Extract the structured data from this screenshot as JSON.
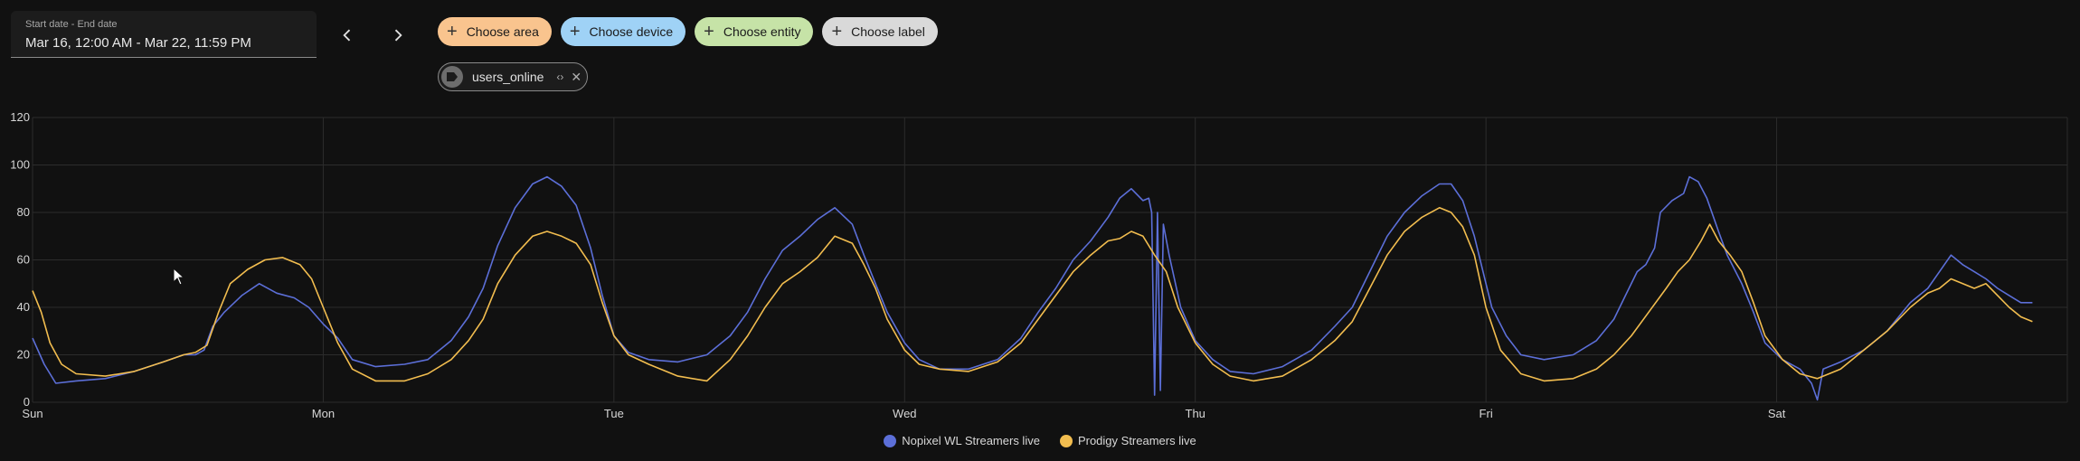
{
  "date_range": {
    "label": "Start date - End date",
    "value": "Mar 16, 12:00 AM - Mar 22, 11:59 PM"
  },
  "nav": {
    "prev_icon": "chevron-left-icon",
    "next_icon": "chevron-right-icon"
  },
  "target_picker": {
    "chips": [
      {
        "label": "Choose area",
        "color": "#f9c48e"
      },
      {
        "label": "Choose device",
        "color": "#9fd2f6"
      },
      {
        "label": "Choose entity",
        "color": "#c6e3a7"
      },
      {
        "label": "Choose label",
        "color": "#d9d9d9"
      }
    ],
    "selected": {
      "label": "users_online",
      "icon": "label-icon"
    }
  },
  "chart_data": {
    "type": "line",
    "title": "",
    "xlabel": "",
    "ylabel": "",
    "x_ticks": [
      "Sun",
      "Mon",
      "Tue",
      "Wed",
      "Thu",
      "Fri",
      "Sat"
    ],
    "x_unit": "day index from Sun 00:00",
    "xlim": [
      0,
      7
    ],
    "ylim": [
      0,
      120
    ],
    "y_ticks": [
      0,
      20,
      40,
      60,
      80,
      100,
      120
    ],
    "grid": true,
    "legend_position": "bottom-center",
    "series": [
      {
        "name": "Nopixel WL Streamers live",
        "color": "#5c6fd8",
        "points": [
          [
            0.0,
            27
          ],
          [
            0.04,
            16
          ],
          [
            0.08,
            8
          ],
          [
            0.15,
            9
          ],
          [
            0.25,
            10
          ],
          [
            0.35,
            13
          ],
          [
            0.45,
            17
          ],
          [
            0.52,
            20
          ],
          [
            0.56,
            20
          ],
          [
            0.59,
            22
          ],
          [
            0.62,
            32
          ],
          [
            0.66,
            38
          ],
          [
            0.72,
            45
          ],
          [
            0.78,
            50
          ],
          [
            0.84,
            46
          ],
          [
            0.9,
            44
          ],
          [
            0.95,
            40
          ],
          [
            1.0,
            33
          ],
          [
            1.05,
            27
          ],
          [
            1.1,
            18
          ],
          [
            1.18,
            15
          ],
          [
            1.28,
            16
          ],
          [
            1.36,
            18
          ],
          [
            1.44,
            26
          ],
          [
            1.5,
            36
          ],
          [
            1.55,
            48
          ],
          [
            1.6,
            66
          ],
          [
            1.66,
            82
          ],
          [
            1.72,
            92
          ],
          [
            1.77,
            95
          ],
          [
            1.82,
            91
          ],
          [
            1.87,
            83
          ],
          [
            1.92,
            65
          ],
          [
            1.96,
            45
          ],
          [
            2.0,
            28
          ],
          [
            2.05,
            21
          ],
          [
            2.12,
            18
          ],
          [
            2.22,
            17
          ],
          [
            2.32,
            20
          ],
          [
            2.4,
            28
          ],
          [
            2.46,
            38
          ],
          [
            2.52,
            52
          ],
          [
            2.58,
            64
          ],
          [
            2.64,
            70
          ],
          [
            2.7,
            77
          ],
          [
            2.76,
            82
          ],
          [
            2.82,
            75
          ],
          [
            2.86,
            62
          ],
          [
            2.9,
            50
          ],
          [
            2.94,
            38
          ],
          [
            3.0,
            25
          ],
          [
            3.05,
            18
          ],
          [
            3.12,
            14
          ],
          [
            3.22,
            14
          ],
          [
            3.32,
            18
          ],
          [
            3.4,
            27
          ],
          [
            3.46,
            38
          ],
          [
            3.52,
            48
          ],
          [
            3.58,
            60
          ],
          [
            3.64,
            68
          ],
          [
            3.7,
            78
          ],
          [
            3.74,
            86
          ],
          [
            3.78,
            90
          ],
          [
            3.82,
            85
          ],
          [
            3.84,
            86
          ],
          [
            3.85,
            80
          ],
          [
            3.86,
            3
          ],
          [
            3.87,
            80
          ],
          [
            3.88,
            5
          ],
          [
            3.89,
            75
          ],
          [
            3.91,
            62
          ],
          [
            3.95,
            40
          ],
          [
            4.0,
            26
          ],
          [
            4.06,
            18
          ],
          [
            4.12,
            13
          ],
          [
            4.2,
            12
          ],
          [
            4.3,
            15
          ],
          [
            4.4,
            22
          ],
          [
            4.48,
            32
          ],
          [
            4.54,
            40
          ],
          [
            4.6,
            55
          ],
          [
            4.66,
            70
          ],
          [
            4.72,
            80
          ],
          [
            4.78,
            87
          ],
          [
            4.84,
            92
          ],
          [
            4.88,
            92
          ],
          [
            4.92,
            85
          ],
          [
            4.96,
            70
          ],
          [
            4.99,
            55
          ],
          [
            5.02,
            40
          ],
          [
            5.07,
            28
          ],
          [
            5.12,
            20
          ],
          [
            5.2,
            18
          ],
          [
            5.3,
            20
          ],
          [
            5.38,
            26
          ],
          [
            5.44,
            35
          ],
          [
            5.48,
            45
          ],
          [
            5.52,
            55
          ],
          [
            5.55,
            58
          ],
          [
            5.58,
            65
          ],
          [
            5.6,
            80
          ],
          [
            5.64,
            85
          ],
          [
            5.68,
            88
          ],
          [
            5.7,
            95
          ],
          [
            5.73,
            93
          ],
          [
            5.76,
            86
          ],
          [
            5.8,
            72
          ],
          [
            5.83,
            62
          ],
          [
            5.88,
            50
          ],
          [
            5.92,
            38
          ],
          [
            5.96,
            25
          ],
          [
            6.02,
            18
          ],
          [
            6.08,
            14
          ],
          [
            6.12,
            8
          ],
          [
            6.14,
            1
          ],
          [
            6.16,
            14
          ],
          [
            6.22,
            17
          ],
          [
            6.3,
            22
          ],
          [
            6.38,
            30
          ],
          [
            6.46,
            42
          ],
          [
            6.52,
            48
          ],
          [
            6.56,
            55
          ],
          [
            6.6,
            62
          ],
          [
            6.64,
            58
          ],
          [
            6.68,
            55
          ],
          [
            6.72,
            52
          ],
          [
            6.76,
            48
          ],
          [
            6.8,
            45
          ],
          [
            6.84,
            42
          ],
          [
            6.88,
            42
          ]
        ]
      },
      {
        "name": "Prodigy Streamers live",
        "color": "#f2bd4f",
        "points": [
          [
            0.0,
            47
          ],
          [
            0.03,
            38
          ],
          [
            0.06,
            25
          ],
          [
            0.1,
            16
          ],
          [
            0.15,
            12
          ],
          [
            0.25,
            11
          ],
          [
            0.35,
            13
          ],
          [
            0.45,
            17
          ],
          [
            0.52,
            20
          ],
          [
            0.56,
            21
          ],
          [
            0.6,
            24
          ],
          [
            0.64,
            38
          ],
          [
            0.68,
            50
          ],
          [
            0.74,
            56
          ],
          [
            0.8,
            60
          ],
          [
            0.86,
            61
          ],
          [
            0.92,
            58
          ],
          [
            0.96,
            52
          ],
          [
            1.0,
            40
          ],
          [
            1.05,
            25
          ],
          [
            1.1,
            14
          ],
          [
            1.18,
            9
          ],
          [
            1.28,
            9
          ],
          [
            1.36,
            12
          ],
          [
            1.44,
            18
          ],
          [
            1.5,
            26
          ],
          [
            1.55,
            35
          ],
          [
            1.6,
            50
          ],
          [
            1.66,
            62
          ],
          [
            1.72,
            70
          ],
          [
            1.77,
            72
          ],
          [
            1.82,
            70
          ],
          [
            1.87,
            67
          ],
          [
            1.92,
            58
          ],
          [
            1.96,
            42
          ],
          [
            2.0,
            28
          ],
          [
            2.05,
            20
          ],
          [
            2.12,
            16
          ],
          [
            2.22,
            11
          ],
          [
            2.32,
            9
          ],
          [
            2.4,
            18
          ],
          [
            2.46,
            28
          ],
          [
            2.52,
            40
          ],
          [
            2.58,
            50
          ],
          [
            2.64,
            55
          ],
          [
            2.7,
            61
          ],
          [
            2.76,
            70
          ],
          [
            2.82,
            67
          ],
          [
            2.86,
            58
          ],
          [
            2.9,
            48
          ],
          [
            2.94,
            35
          ],
          [
            3.0,
            22
          ],
          [
            3.05,
            16
          ],
          [
            3.12,
            14
          ],
          [
            3.22,
            13
          ],
          [
            3.32,
            17
          ],
          [
            3.4,
            25
          ],
          [
            3.46,
            35
          ],
          [
            3.52,
            45
          ],
          [
            3.58,
            55
          ],
          [
            3.64,
            62
          ],
          [
            3.7,
            68
          ],
          [
            3.74,
            69
          ],
          [
            3.78,
            72
          ],
          [
            3.82,
            70
          ],
          [
            3.86,
            62
          ],
          [
            3.9,
            55
          ],
          [
            3.94,
            40
          ],
          [
            4.0,
            25
          ],
          [
            4.06,
            16
          ],
          [
            4.12,
            11
          ],
          [
            4.2,
            9
          ],
          [
            4.3,
            11
          ],
          [
            4.4,
            18
          ],
          [
            4.48,
            26
          ],
          [
            4.54,
            34
          ],
          [
            4.6,
            48
          ],
          [
            4.66,
            62
          ],
          [
            4.72,
            72
          ],
          [
            4.78,
            78
          ],
          [
            4.84,
            82
          ],
          [
            4.88,
            80
          ],
          [
            4.92,
            74
          ],
          [
            4.96,
            62
          ],
          [
            5.0,
            40
          ],
          [
            5.05,
            22
          ],
          [
            5.12,
            12
          ],
          [
            5.2,
            9
          ],
          [
            5.3,
            10
          ],
          [
            5.38,
            14
          ],
          [
            5.44,
            20
          ],
          [
            5.5,
            28
          ],
          [
            5.56,
            38
          ],
          [
            5.62,
            48
          ],
          [
            5.66,
            55
          ],
          [
            5.7,
            60
          ],
          [
            5.74,
            68
          ],
          [
            5.77,
            75
          ],
          [
            5.8,
            68
          ],
          [
            5.84,
            62
          ],
          [
            5.88,
            55
          ],
          [
            5.92,
            42
          ],
          [
            5.96,
            28
          ],
          [
            6.02,
            18
          ],
          [
            6.08,
            12
          ],
          [
            6.14,
            10
          ],
          [
            6.22,
            14
          ],
          [
            6.3,
            22
          ],
          [
            6.38,
            30
          ],
          [
            6.46,
            40
          ],
          [
            6.52,
            46
          ],
          [
            6.56,
            48
          ],
          [
            6.6,
            52
          ],
          [
            6.64,
            50
          ],
          [
            6.68,
            48
          ],
          [
            6.72,
            50
          ],
          [
            6.76,
            45
          ],
          [
            6.8,
            40
          ],
          [
            6.84,
            36
          ],
          [
            6.88,
            34
          ]
        ]
      }
    ]
  }
}
